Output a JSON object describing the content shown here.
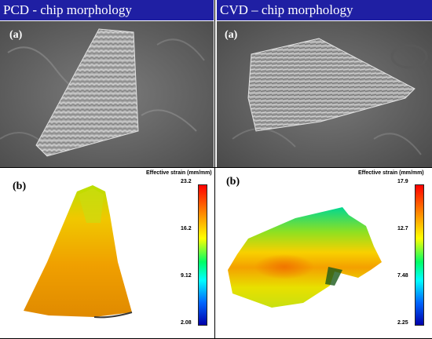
{
  "headers": {
    "left": "PCD - chip morphology",
    "right": "CVD – chip morphology"
  },
  "panels": {
    "left_sem_label": "(a)",
    "right_sem_label": "(a)",
    "left_sim_label": "(b)",
    "right_sim_label": "(b)"
  },
  "colorbars": {
    "left": {
      "title": "Effective strain  (mm/mm)",
      "ticks": [
        "23.2",
        "16.2",
        "9.12",
        "2.08"
      ]
    },
    "right": {
      "title": "Effective strain  (mm/mm)",
      "ticks": [
        "17.9",
        "12.7",
        "7.48",
        "2.25"
      ]
    }
  },
  "colors": {
    "header_bg": "#1f1fa3",
    "colormap": [
      "#ff0000",
      "#ff8800",
      "#ffff00",
      "#00ff66",
      "#00ffff",
      "#0066ff",
      "#0000aa"
    ]
  }
}
